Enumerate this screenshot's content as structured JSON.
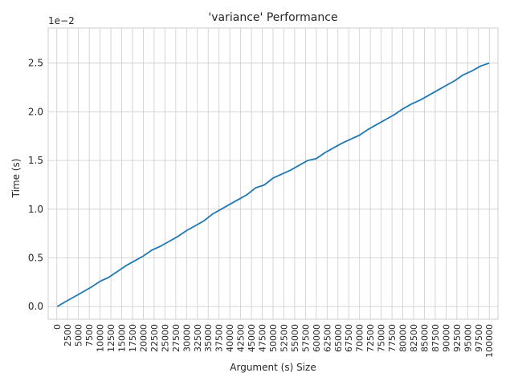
{
  "chart_data": {
    "type": "line",
    "title": "'variance' Performance",
    "xlabel": "Argument (s) Size",
    "ylabel": "Time (s)",
    "offset_label": "1e−2",
    "x_ticks": [
      0,
      2500,
      5000,
      7500,
      10000,
      12500,
      15000,
      17500,
      20000,
      22500,
      25000,
      27500,
      30000,
      32500,
      35000,
      37500,
      40000,
      42500,
      45000,
      47500,
      50000,
      52500,
      55000,
      57500,
      60000,
      62500,
      65000,
      67500,
      70000,
      72500,
      75000,
      77500,
      80000,
      82500,
      85000,
      87500,
      90000,
      92500,
      95000,
      97500,
      100000
    ],
    "y_ticks": [
      0.0,
      0.5,
      1.0,
      1.5,
      2.0,
      2.5
    ],
    "y_tick_labels": [
      "0.0",
      "0.5",
      "1.0",
      "1.5",
      "2.0",
      "2.5"
    ],
    "xlim": [
      -2000,
      102000
    ],
    "ylim": [
      -0.13,
      2.86
    ],
    "y_scale_note": "values in units of 1e-2 seconds",
    "grid": true,
    "color": "#1f77b4",
    "series": [
      {
        "x": [
          100,
          2000,
          4000,
          6000,
          8000,
          10000,
          12000,
          14000,
          16000,
          18000,
          20000,
          22000,
          24000,
          26000,
          28000,
          30000,
          32000,
          34000,
          36000,
          38000,
          40000,
          42000,
          44000,
          46000,
          48000,
          50000,
          52000,
          54000,
          56000,
          58000,
          60000,
          62000,
          64000,
          66000,
          68000,
          70000,
          72000,
          74000,
          76000,
          78000,
          80000,
          82000,
          84000,
          86000,
          88000,
          90000,
          92000,
          94000,
          96000,
          98000,
          100000
        ],
        "values": [
          0.0,
          0.05,
          0.1,
          0.15,
          0.2,
          0.26,
          0.3,
          0.36,
          0.42,
          0.47,
          0.52,
          0.58,
          0.62,
          0.67,
          0.72,
          0.78,
          0.83,
          0.88,
          0.95,
          1.0,
          1.05,
          1.1,
          1.15,
          1.22,
          1.25,
          1.32,
          1.36,
          1.4,
          1.45,
          1.5,
          1.52,
          1.58,
          1.63,
          1.68,
          1.72,
          1.76,
          1.82,
          1.87,
          1.92,
          1.97,
          2.03,
          2.08,
          2.12,
          2.17,
          2.22,
          2.27,
          2.32,
          2.38,
          2.42,
          2.47,
          2.5
        ]
      }
    ]
  }
}
